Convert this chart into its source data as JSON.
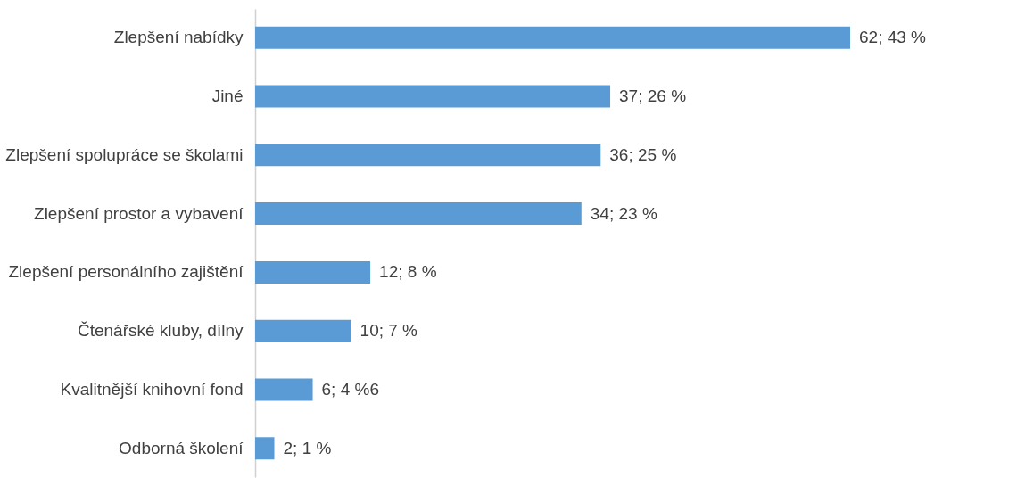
{
  "chart_data": {
    "type": "bar",
    "orientation": "horizontal",
    "tick_labels": "y",
    "color": "#5b9bd5",
    "categories": [
      "Zlepšení nabídky",
      "Jiné",
      "Zlepšení spolupráce se školami",
      "Zlepšení prostor a vybavení",
      "Zlepšení personálního zajištění",
      "Čtenářské kluby, dílny",
      "Kvalitnější knihovní fond",
      "Odborná školení"
    ],
    "values": [
      62,
      37,
      36,
      34,
      12,
      10,
      6,
      2
    ],
    "value_labels": [
      "62; 43 %",
      "37; 26 %",
      "36; 25 %",
      "34; 23 %",
      "12; 8 %",
      "10; 7 %",
      "6; 4 %6",
      "2; 1 %"
    ]
  }
}
